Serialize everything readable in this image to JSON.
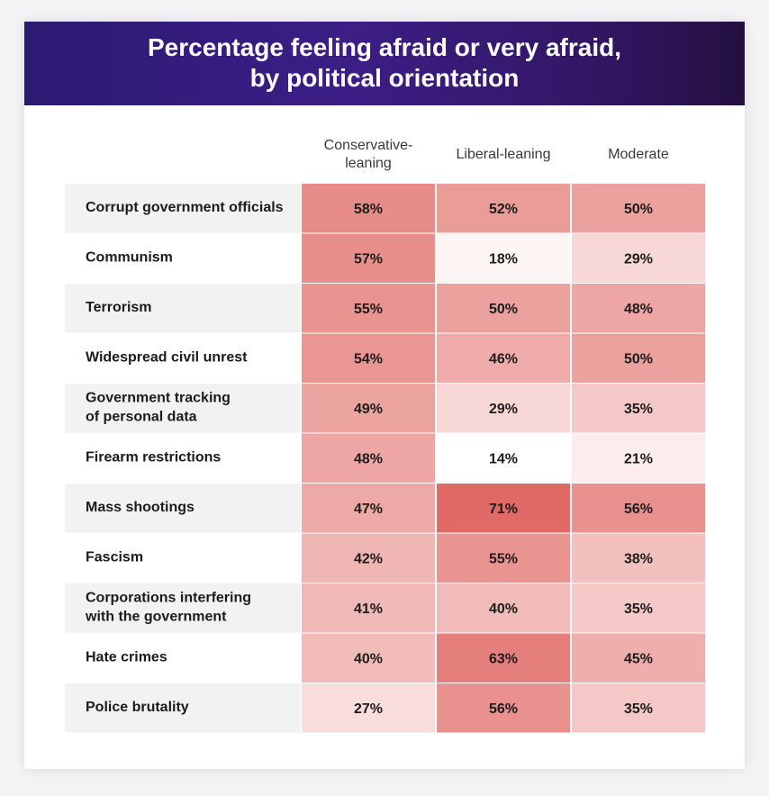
{
  "chart_data": {
    "type": "heatmap",
    "title": "Percentage feeling afraid or very afraid,\nby political orientation",
    "columns": [
      "Conservative-\nleaning",
      "Liberal-leaning",
      "Moderate"
    ],
    "rows": [
      "Corrupt government officials",
      "Communism",
      "Terrorism",
      "Widespread civil unrest",
      "Government tracking\nof personal data",
      "Firearm restrictions",
      "Mass shootings",
      "Fascism",
      "Corporations interfering\nwith the government",
      "Hate crimes",
      "Police brutality"
    ],
    "values": [
      [
        58,
        52,
        50
      ],
      [
        57,
        18,
        29
      ],
      [
        55,
        50,
        48
      ],
      [
        54,
        46,
        50
      ],
      [
        49,
        29,
        35
      ],
      [
        48,
        14,
        21
      ],
      [
        47,
        71,
        56
      ],
      [
        42,
        55,
        38
      ],
      [
        41,
        40,
        35
      ],
      [
        40,
        63,
        45
      ],
      [
        27,
        56,
        35
      ]
    ],
    "value_suffix": "%",
    "color_scale": {
      "low": "#ffffff",
      "high": "#e06a66",
      "low_value": 14,
      "high_value": 71
    },
    "row_stripe_color": "#f2f2f2"
  }
}
